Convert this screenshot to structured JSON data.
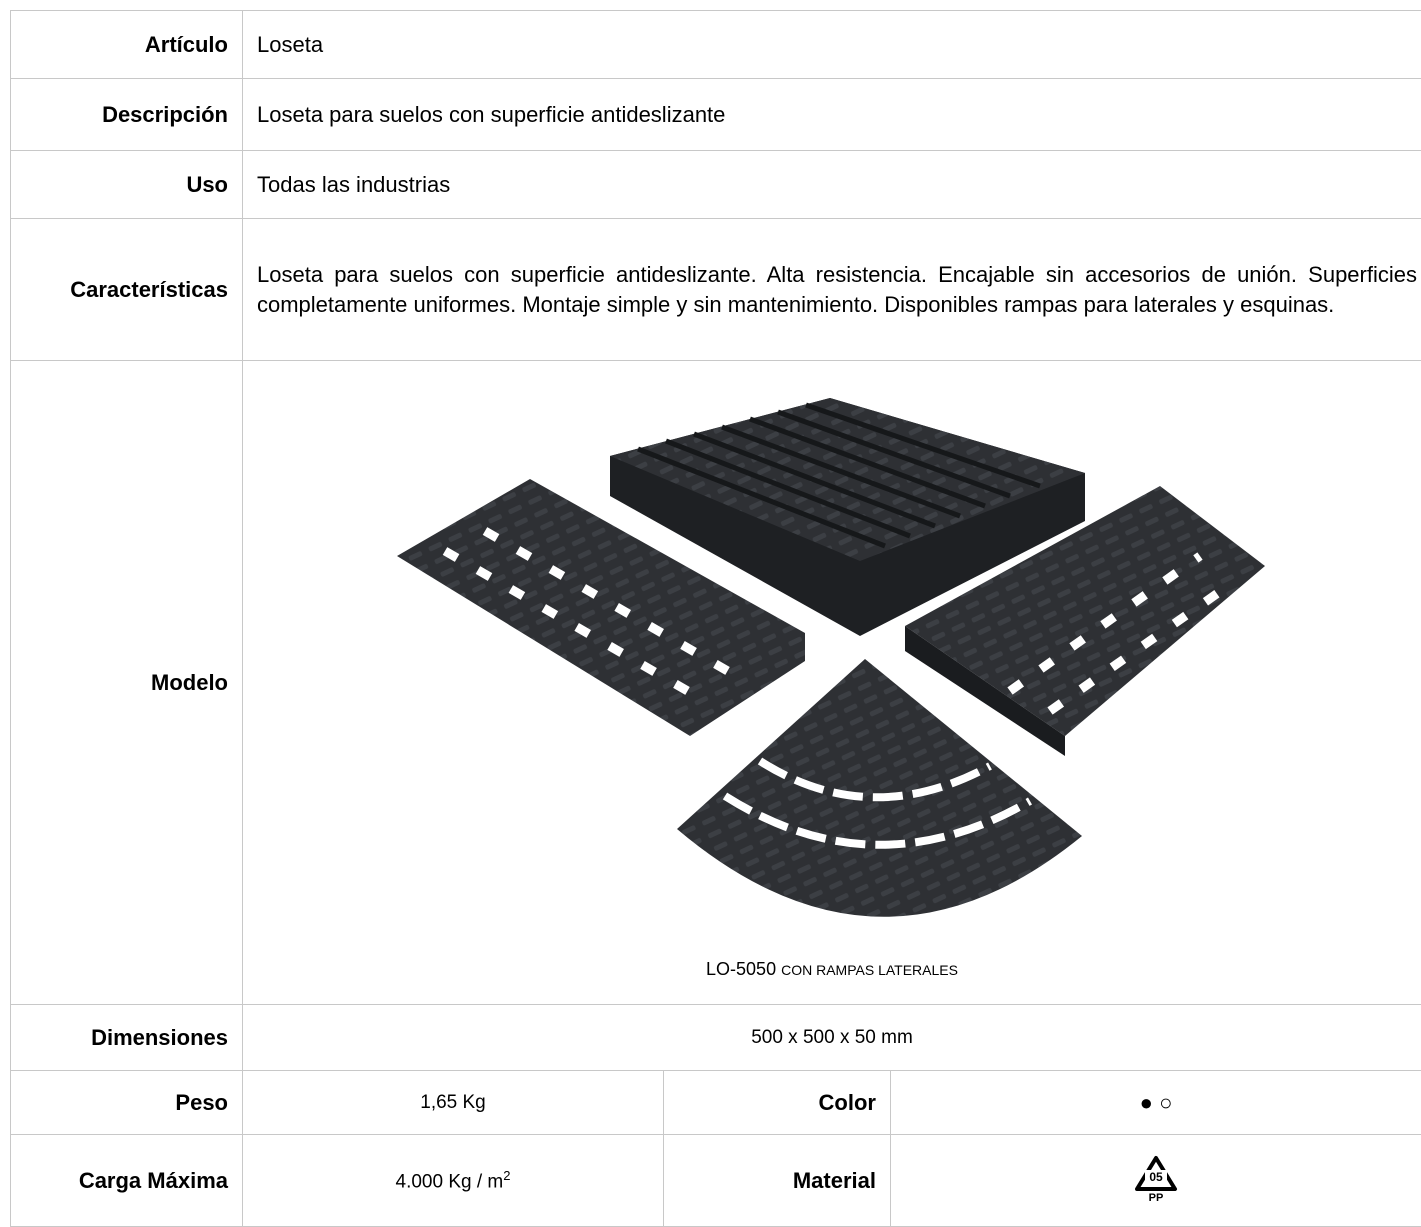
{
  "rows": {
    "articulo": {
      "label": "Artículo",
      "value": "Loseta"
    },
    "descripcion": {
      "label": "Descripción",
      "value": "Loseta para suelos con superficie antideslizante"
    },
    "uso": {
      "label": "Uso",
      "value": "Todas las industrias"
    },
    "caracteristicas": {
      "label": "Características",
      "value": "Loseta para suelos con superficie antideslizante. Alta resistencia. Encajable sin accesorios de unión. Superficies completamente uniformes. Montaje simple y sin mantenimiento. Disponibles rampas para laterales y esquinas."
    },
    "modelo": {
      "label": "Modelo",
      "code": "LO-5050",
      "caption": "CON RAMPAS LATERALES"
    },
    "dimensiones": {
      "label": "Dimensiones",
      "value": "500 x 500 x 50 mm"
    },
    "peso": {
      "label": "Peso",
      "value": "1,65 Kg"
    },
    "color": {
      "label": "Color",
      "filled": "●",
      "empty": "○"
    },
    "carga_maxima": {
      "label": "Carga Máxima",
      "value": "4.000 Kg / m",
      "sup": "2"
    },
    "material": {
      "label": "Material",
      "code": "05",
      "name": "PP"
    }
  }
}
